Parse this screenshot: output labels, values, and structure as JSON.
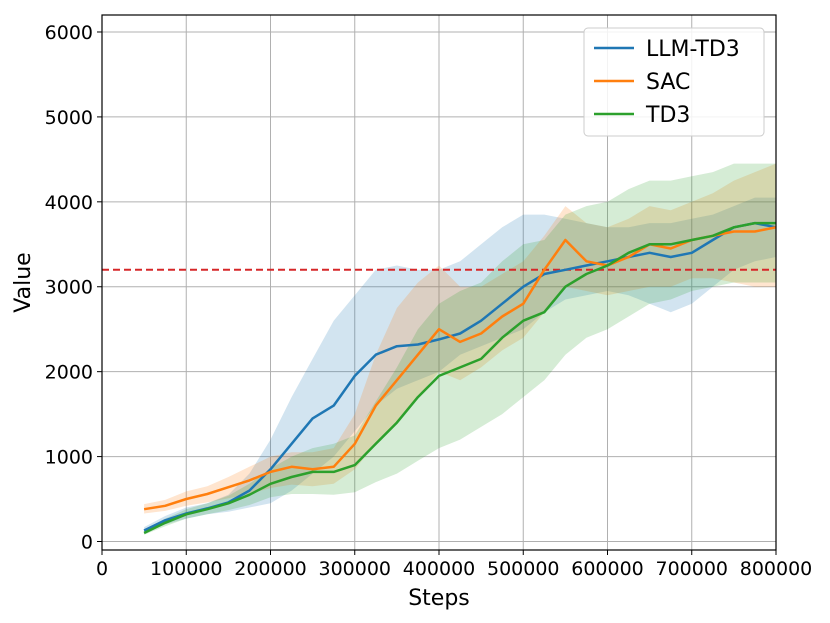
{
  "chart_data": {
    "type": "line",
    "title": "",
    "xlabel": "Steps",
    "ylabel": "Value",
    "xlim": [
      0,
      800000
    ],
    "ylim": [
      -100,
      6200
    ],
    "xticks": [
      0,
      100000,
      200000,
      300000,
      400000,
      500000,
      600000,
      700000,
      800000
    ],
    "xtick_labels": [
      "0",
      "100000",
      "200000",
      "300000",
      "400000",
      "500000",
      "600000",
      "700000",
      "800000"
    ],
    "yticks": [
      0,
      1000,
      2000,
      3000,
      4000,
      5000,
      6000
    ],
    "ytick_labels": [
      "0",
      "1000",
      "2000",
      "3000",
      "4000",
      "5000",
      "6000"
    ],
    "grid": true,
    "legend_position": "top-right",
    "reference_line": {
      "y": 3200,
      "color": "#d62728",
      "style": "dashed"
    },
    "x": [
      50000,
      75000,
      100000,
      125000,
      150000,
      175000,
      200000,
      225000,
      250000,
      275000,
      300000,
      325000,
      350000,
      375000,
      400000,
      425000,
      450000,
      475000,
      500000,
      525000,
      550000,
      575000,
      600000,
      625000,
      650000,
      675000,
      700000,
      725000,
      750000,
      775000,
      800000
    ],
    "series": [
      {
        "name": "LLM-TD3",
        "color": "#1f77b4",
        "values": [
          130,
          250,
          330,
          390,
          460,
          600,
          850,
          1150,
          1450,
          1600,
          1950,
          2200,
          2300,
          2320,
          2380,
          2450,
          2600,
          2800,
          3000,
          3150,
          3200,
          3250,
          3300,
          3350,
          3400,
          3350,
          3400,
          3550,
          3700,
          3750,
          3700
        ],
        "lower": [
          100,
          200,
          270,
          320,
          350,
          400,
          450,
          600,
          800,
          1000,
          1300,
          1600,
          1800,
          1900,
          2000,
          2200,
          2300,
          2400,
          2500,
          2700,
          2850,
          2900,
          2950,
          2900,
          2800,
          2700,
          2800,
          3000,
          3200,
          3300,
          3350
        ],
        "upper": [
          170,
          300,
          400,
          450,
          550,
          800,
          1200,
          1700,
          2150,
          2600,
          2900,
          3200,
          3250,
          3200,
          3200,
          3300,
          3500,
          3700,
          3850,
          3850,
          3800,
          3750,
          3700,
          3700,
          3750,
          3750,
          3800,
          3850,
          3950,
          4050,
          4050
        ]
      },
      {
        "name": "SAC",
        "color": "#ff7f0e",
        "values": [
          380,
          420,
          500,
          560,
          640,
          720,
          820,
          880,
          850,
          880,
          1150,
          1600,
          1900,
          2200,
          2500,
          2350,
          2450,
          2650,
          2800,
          3200,
          3550,
          3300,
          3250,
          3350,
          3500,
          3450,
          3550,
          3600,
          3650,
          3650,
          3700
        ],
        "lower": [
          330,
          360,
          420,
          460,
          510,
          560,
          630,
          670,
          650,
          680,
          850,
          1150,
          1400,
          1700,
          2000,
          1900,
          2050,
          2250,
          2400,
          2700,
          3000,
          2950,
          2900,
          2950,
          3000,
          3000,
          3100,
          3100,
          3050,
          3000,
          3000
        ],
        "upper": [
          440,
          490,
          590,
          650,
          760,
          880,
          1000,
          1050,
          1050,
          1100,
          1500,
          2200,
          2750,
          3050,
          3250,
          3000,
          3000,
          3150,
          3300,
          3600,
          3950,
          3750,
          3700,
          3800,
          3950,
          3900,
          4000,
          4100,
          4250,
          4350,
          4450
        ]
      },
      {
        "name": "TD3",
        "color": "#2ca02c",
        "values": [
          100,
          220,
          320,
          380,
          450,
          550,
          680,
          760,
          820,
          820,
          900,
          1150,
          1400,
          1700,
          1950,
          2050,
          2150,
          2400,
          2600,
          2700,
          3000,
          3150,
          3250,
          3400,
          3500,
          3500,
          3550,
          3600,
          3700,
          3750,
          3750
        ],
        "lower": [
          80,
          180,
          270,
          320,
          370,
          430,
          520,
          560,
          560,
          550,
          580,
          700,
          800,
          950,
          1100,
          1200,
          1350,
          1500,
          1700,
          1900,
          2200,
          2400,
          2500,
          2650,
          2800,
          2850,
          2950,
          3000,
          3050,
          3050,
          3050
        ],
        "upper": [
          140,
          270,
          380,
          450,
          540,
          680,
          860,
          1000,
          1100,
          1150,
          1250,
          1650,
          2050,
          2500,
          2800,
          2950,
          3050,
          3300,
          3500,
          3550,
          3850,
          3950,
          4000,
          4150,
          4250,
          4250,
          4300,
          4350,
          4450,
          4450,
          4450
        ]
      }
    ]
  }
}
